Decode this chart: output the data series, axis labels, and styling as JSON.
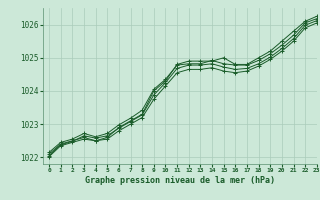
{
  "title": "Graphe pression niveau de la mer (hPa)",
  "background_color": "#cce8d8",
  "grid_color": "#aaccba",
  "line_color": "#1a5c2a",
  "text_color": "#1a5c2a",
  "xlim": [
    -0.5,
    23
  ],
  "ylim": [
    1021.8,
    1026.5
  ],
  "yticks": [
    1022,
    1023,
    1024,
    1025,
    1026
  ],
  "xticks": [
    0,
    1,
    2,
    3,
    4,
    5,
    6,
    7,
    8,
    9,
    10,
    11,
    12,
    13,
    14,
    15,
    16,
    17,
    18,
    19,
    20,
    21,
    22,
    23
  ],
  "series": [
    [
      1022.1,
      1022.4,
      1022.5,
      1022.6,
      1022.5,
      1022.6,
      1022.9,
      1023.1,
      1023.3,
      1024.0,
      1024.3,
      1024.8,
      1024.9,
      1024.9,
      1024.9,
      1025.0,
      1024.8,
      1024.8,
      1025.0,
      1025.2,
      1025.5,
      1025.8,
      1026.1,
      1026.25
    ],
    [
      1022.05,
      1022.38,
      1022.48,
      1022.65,
      1022.58,
      1022.65,
      1022.88,
      1023.08,
      1023.28,
      1023.88,
      1024.25,
      1024.68,
      1024.78,
      1024.78,
      1024.82,
      1024.72,
      1024.65,
      1024.68,
      1024.82,
      1025.02,
      1025.28,
      1025.58,
      1025.98,
      1026.12
    ],
    [
      1022.15,
      1022.45,
      1022.55,
      1022.72,
      1022.62,
      1022.72,
      1022.98,
      1023.18,
      1023.42,
      1024.05,
      1024.35,
      1024.78,
      1024.82,
      1024.82,
      1024.92,
      1024.82,
      1024.78,
      1024.78,
      1024.92,
      1025.12,
      1025.38,
      1025.68,
      1026.05,
      1026.18
    ],
    [
      1022.02,
      1022.35,
      1022.45,
      1022.55,
      1022.5,
      1022.55,
      1022.8,
      1023.0,
      1023.2,
      1023.75,
      1024.15,
      1024.55,
      1024.65,
      1024.65,
      1024.7,
      1024.6,
      1024.55,
      1024.6,
      1024.75,
      1024.95,
      1025.2,
      1025.5,
      1025.9,
      1026.05
    ]
  ]
}
